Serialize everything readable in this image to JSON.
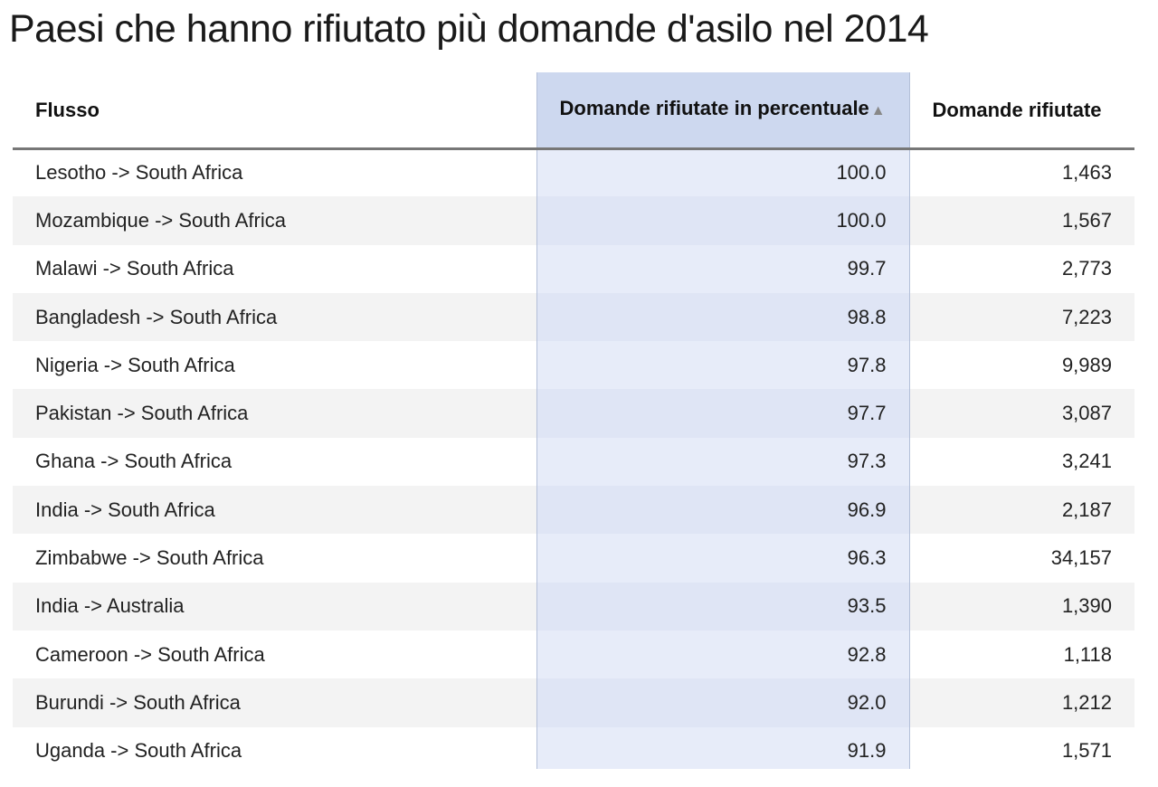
{
  "title": "Paesi che hanno rifiutato più domande d'asilo nel 2014",
  "colors": {
    "sorted_column_header": "#cdd8ef",
    "sorted_column_cells": "#e7ecf9",
    "row_stripe": "#f3f3f3"
  },
  "chart_data": {
    "type": "table",
    "title": "Paesi che hanno rifiutato più domande d'asilo nel 2014",
    "sorted_column": "Domande rifiutate in percentuale",
    "sort_indicator": "▲",
    "columns": [
      {
        "key": "flow",
        "label": "Flusso"
      },
      {
        "key": "pct",
        "label": "Domande rifiutate in percentuale"
      },
      {
        "key": "count",
        "label": "Domande rifiutate"
      }
    ],
    "rows": [
      {
        "flow": "Lesotho -> South Africa",
        "pct": "100.0",
        "count": "1,463"
      },
      {
        "flow": "Mozambique -> South Africa",
        "pct": "100.0",
        "count": "1,567"
      },
      {
        "flow": "Malawi -> South Africa",
        "pct": "99.7",
        "count": "2,773"
      },
      {
        "flow": "Bangladesh -> South Africa",
        "pct": "98.8",
        "count": "7,223"
      },
      {
        "flow": "Nigeria -> South Africa",
        "pct": "97.8",
        "count": "9,989"
      },
      {
        "flow": "Pakistan -> South Africa",
        "pct": "97.7",
        "count": "3,087"
      },
      {
        "flow": "Ghana -> South Africa",
        "pct": "97.3",
        "count": "3,241"
      },
      {
        "flow": "India -> South Africa",
        "pct": "96.9",
        "count": "2,187"
      },
      {
        "flow": "Zimbabwe -> South Africa",
        "pct": "96.3",
        "count": "34,157"
      },
      {
        "flow": "India -> Australia",
        "pct": "93.5",
        "count": "1,390"
      },
      {
        "flow": "Cameroon -> South Africa",
        "pct": "92.8",
        "count": "1,118"
      },
      {
        "flow": "Burundi -> South Africa",
        "pct": "92.0",
        "count": "1,212"
      },
      {
        "flow": "Uganda -> South Africa",
        "pct": "91.9",
        "count": "1,571"
      }
    ]
  }
}
